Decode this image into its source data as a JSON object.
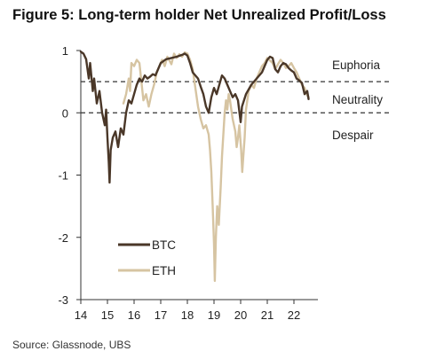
{
  "figure": {
    "title": "Figure 5: Long-term holder Net Unrealized Profit/Loss",
    "source": "Source: Glassnode, UBS"
  },
  "colors": {
    "btc": "#4a3728",
    "eth": "#d6c4a2",
    "axis": "#333333",
    "dash": "#333333"
  },
  "chart_data": {
    "type": "line",
    "title": "Figure 5: Long-term holder Net Unrealized Profit/Loss",
    "xlabel": "",
    "ylabel": "",
    "xlim": [
      14,
      22.7
    ],
    "ylim": [
      -3,
      1
    ],
    "x_ticks": [
      "14",
      "15",
      "16",
      "17",
      "18",
      "19",
      "20",
      "21",
      "22"
    ],
    "y_ticks": [
      "1",
      "0",
      "-1",
      "-2",
      "-3"
    ],
    "reference_lines": [
      {
        "y": 0.5,
        "style": "dashed"
      },
      {
        "y": 0,
        "style": "dashed"
      }
    ],
    "zones": [
      "Euphoria",
      "Neutrality",
      "Despair"
    ],
    "legend_position": "lower-left",
    "series": [
      {
        "name": "BTC",
        "color": "#4a3728",
        "points": [
          [
            14.0,
            0.98
          ],
          [
            14.1,
            0.95
          ],
          [
            14.2,
            0.86
          ],
          [
            14.3,
            0.55
          ],
          [
            14.35,
            0.8
          ],
          [
            14.45,
            0.35
          ],
          [
            14.5,
            0.55
          ],
          [
            14.6,
            0.15
          ],
          [
            14.7,
            0.35
          ],
          [
            14.8,
            0.0
          ],
          [
            14.9,
            -0.2
          ],
          [
            14.95,
            0.05
          ],
          [
            15.0,
            -0.4
          ],
          [
            15.05,
            -0.8
          ],
          [
            15.08,
            -1.12
          ],
          [
            15.12,
            -0.6
          ],
          [
            15.2,
            -0.4
          ],
          [
            15.3,
            -0.3
          ],
          [
            15.4,
            -0.55
          ],
          [
            15.5,
            -0.25
          ],
          [
            15.6,
            -0.35
          ],
          [
            15.7,
            0.0
          ],
          [
            15.8,
            0.2
          ],
          [
            15.9,
            0.15
          ],
          [
            16.0,
            0.3
          ],
          [
            16.1,
            0.45
          ],
          [
            16.2,
            0.55
          ],
          [
            16.3,
            0.5
          ],
          [
            16.4,
            0.6
          ],
          [
            16.5,
            0.55
          ],
          [
            16.6,
            0.58
          ],
          [
            16.7,
            0.62
          ],
          [
            16.8,
            0.6
          ],
          [
            16.9,
            0.7
          ],
          [
            17.0,
            0.8
          ],
          [
            17.2,
            0.86
          ],
          [
            17.4,
            0.88
          ],
          [
            17.6,
            0.9
          ],
          [
            17.8,
            0.93
          ],
          [
            17.9,
            0.95
          ],
          [
            18.0,
            0.92
          ],
          [
            18.1,
            0.8
          ],
          [
            18.2,
            0.65
          ],
          [
            18.3,
            0.6
          ],
          [
            18.4,
            0.55
          ],
          [
            18.5,
            0.42
          ],
          [
            18.6,
            0.3
          ],
          [
            18.7,
            0.1
          ],
          [
            18.8,
            0.0
          ],
          [
            18.9,
            0.25
          ],
          [
            19.0,
            0.4
          ],
          [
            19.1,
            0.3
          ],
          [
            19.2,
            0.45
          ],
          [
            19.3,
            0.6
          ],
          [
            19.4,
            0.55
          ],
          [
            19.5,
            0.45
          ],
          [
            19.6,
            0.35
          ],
          [
            19.7,
            0.25
          ],
          [
            19.8,
            0.3
          ],
          [
            19.9,
            0.2
          ],
          [
            20.0,
            -0.15
          ],
          [
            20.05,
            0.1
          ],
          [
            20.2,
            0.3
          ],
          [
            20.4,
            0.45
          ],
          [
            20.6,
            0.55
          ],
          [
            20.8,
            0.65
          ],
          [
            21.0,
            0.85
          ],
          [
            21.1,
            0.9
          ],
          [
            21.2,
            0.88
          ],
          [
            21.3,
            0.7
          ],
          [
            21.4,
            0.65
          ],
          [
            21.5,
            0.75
          ],
          [
            21.6,
            0.8
          ],
          [
            21.7,
            0.78
          ],
          [
            21.8,
            0.72
          ],
          [
            21.9,
            0.68
          ],
          [
            22.0,
            0.65
          ],
          [
            22.1,
            0.55
          ],
          [
            22.2,
            0.52
          ],
          [
            22.3,
            0.48
          ],
          [
            22.4,
            0.3
          ],
          [
            22.5,
            0.35
          ],
          [
            22.55,
            0.22
          ]
        ]
      },
      {
        "name": "ETH",
        "color": "#d6c4a2",
        "points": [
          [
            15.6,
            0.15
          ],
          [
            15.7,
            0.3
          ],
          [
            15.8,
            0.55
          ],
          [
            15.85,
            0.35
          ],
          [
            15.9,
            0.8
          ],
          [
            16.0,
            0.75
          ],
          [
            16.1,
            0.85
          ],
          [
            16.2,
            0.8
          ],
          [
            16.3,
            0.4
          ],
          [
            16.35,
            0.2
          ],
          [
            16.45,
            0.3
          ],
          [
            16.55,
            0.1
          ],
          [
            16.65,
            0.3
          ],
          [
            16.75,
            0.45
          ],
          [
            16.85,
            0.65
          ],
          [
            16.95,
            0.75
          ],
          [
            17.05,
            0.85
          ],
          [
            17.15,
            0.75
          ],
          [
            17.25,
            0.9
          ],
          [
            17.4,
            0.78
          ],
          [
            17.5,
            0.95
          ],
          [
            17.6,
            0.88
          ],
          [
            17.7,
            0.94
          ],
          [
            17.8,
            0.9
          ],
          [
            17.9,
            0.97
          ],
          [
            18.0,
            0.95
          ],
          [
            18.1,
            0.85
          ],
          [
            18.2,
            0.7
          ],
          [
            18.3,
            0.4
          ],
          [
            18.4,
            0.1
          ],
          [
            18.5,
            -0.1
          ],
          [
            18.6,
            -0.25
          ],
          [
            18.7,
            -0.2
          ],
          [
            18.8,
            -0.35
          ],
          [
            18.85,
            -0.6
          ],
          [
            18.9,
            -0.95
          ],
          [
            18.95,
            -1.5
          ],
          [
            19.0,
            -2.1
          ],
          [
            19.03,
            -2.7
          ],
          [
            19.07,
            -2.0
          ],
          [
            19.12,
            -1.5
          ],
          [
            19.18,
            -1.8
          ],
          [
            19.25,
            -1.2
          ],
          [
            19.3,
            -0.7
          ],
          [
            19.35,
            -0.35
          ],
          [
            19.4,
            0.0
          ],
          [
            19.45,
            0.2
          ],
          [
            19.5,
            0.05
          ],
          [
            19.55,
            0.3
          ],
          [
            19.6,
            0.2
          ],
          [
            19.7,
            -0.1
          ],
          [
            19.8,
            -0.3
          ],
          [
            19.85,
            -0.55
          ],
          [
            19.9,
            -0.4
          ],
          [
            19.95,
            -0.2
          ],
          [
            20.02,
            -0.6
          ],
          [
            20.06,
            -0.95
          ],
          [
            20.1,
            -0.7
          ],
          [
            20.15,
            -0.4
          ],
          [
            20.2,
            0.05
          ],
          [
            20.3,
            0.35
          ],
          [
            20.4,
            0.45
          ],
          [
            20.5,
            0.4
          ],
          [
            20.6,
            0.55
          ],
          [
            20.7,
            0.65
          ],
          [
            20.8,
            0.75
          ],
          [
            20.9,
            0.8
          ],
          [
            21.0,
            0.88
          ],
          [
            21.1,
            0.84
          ],
          [
            21.2,
            0.8
          ],
          [
            21.3,
            0.7
          ],
          [
            21.4,
            0.78
          ],
          [
            21.5,
            0.85
          ],
          [
            21.6,
            0.8
          ],
          [
            21.7,
            0.72
          ],
          [
            21.8,
            0.75
          ],
          [
            21.9,
            0.8
          ],
          [
            22.0,
            0.72
          ],
          [
            22.1,
            0.65
          ],
          [
            22.2,
            0.55
          ],
          [
            22.3,
            0.45
          ],
          [
            22.4,
            0.4
          ],
          [
            22.5,
            0.28
          ],
          [
            22.55,
            0.25
          ]
        ]
      }
    ]
  }
}
